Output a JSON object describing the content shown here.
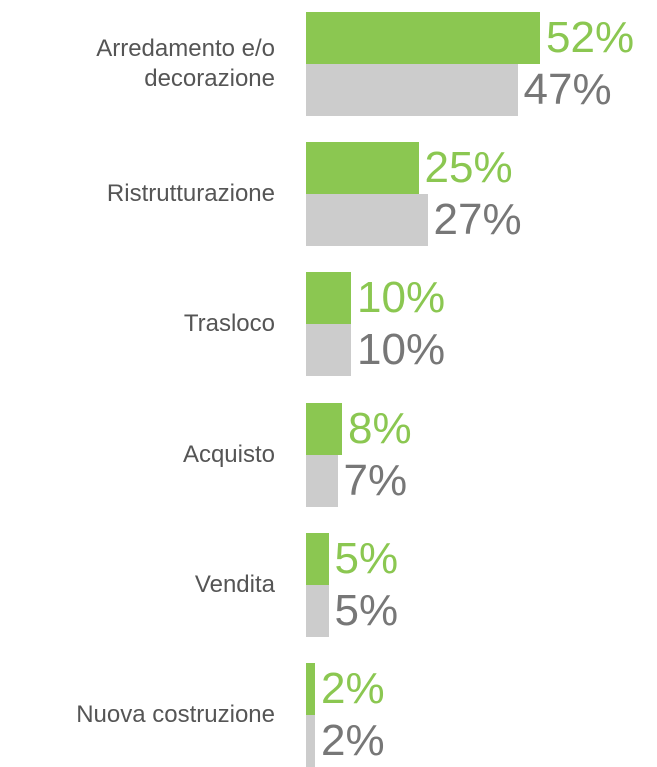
{
  "chart_data": {
    "type": "bar",
    "orientation": "horizontal",
    "categories": [
      "Arredamento e/o decorazione",
      "Ristrutturazione",
      "Trasloco",
      "Acquisto",
      "Vendita",
      "Nuova costruzione"
    ],
    "series": [
      {
        "color": "#8bc751",
        "values": [
          52,
          25,
          10,
          8,
          5,
          2
        ],
        "value_labels": [
          "52%",
          "25%",
          "10%",
          "8%",
          "5%",
          "2%"
        ]
      },
      {
        "color": "#cccccc",
        "values": [
          47,
          27,
          10,
          7,
          5,
          2
        ],
        "value_labels": [
          "47%",
          "27%",
          "10%",
          "7%",
          "5%",
          "2%"
        ]
      }
    ]
  }
}
